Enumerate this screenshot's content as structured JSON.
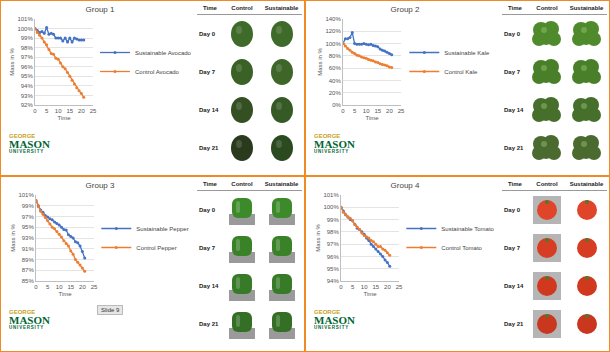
{
  "chart_data": [
    {
      "type": "line",
      "title": "Group 1",
      "x_label": "Time",
      "y_label": "Mass in %",
      "x": [
        0,
        1,
        2,
        3,
        4,
        5,
        6,
        7,
        8,
        9,
        10,
        11,
        12,
        13,
        14,
        15,
        16,
        17,
        18,
        19,
        20,
        21
      ],
      "xlim": [
        0,
        25
      ],
      "xticks": [
        0,
        5,
        10,
        15,
        20,
        25
      ],
      "ylim": [
        92,
        101
      ],
      "yticks": [
        {
          "value": 92,
          "label": "92%"
        },
        {
          "value": 93,
          "label": "93%"
        },
        {
          "value": 94,
          "label": "94%"
        },
        {
          "value": 95,
          "label": "95%"
        },
        {
          "value": 96,
          "label": "96%"
        },
        {
          "value": 97,
          "label": "97%"
        },
        {
          "value": 98,
          "label": "98%"
        },
        {
          "value": 99,
          "label": "99%"
        },
        {
          "value": 100,
          "label": "100%"
        },
        {
          "value": 101,
          "label": "101%"
        }
      ],
      "grid": true,
      "legend": "right",
      "series": [
        {
          "name": "Sustainable Avocado",
          "color": "#4472c4",
          "marker": "circle",
          "values": [
            100,
            99.8,
            99.6,
            99.7,
            99.5,
            100.1,
            99.4,
            99.5,
            99.4,
            99.0,
            99.0,
            99.0,
            98.7,
            99.0,
            98.6,
            99.0,
            98.6,
            99.0,
            98.9,
            98.8,
            98.8,
            98.8
          ]
        },
        {
          "name": "Control Avocado",
          "color": "#ed7d31",
          "marker": "circle",
          "values": [
            100,
            99.6,
            99.3,
            99.0,
            98.6,
            98.3,
            97.8,
            97.4,
            97.3,
            96.9,
            96.8,
            96.4,
            96.0,
            95.8,
            95.4,
            95.0,
            94.6,
            94.2,
            93.8,
            93.5,
            93.2,
            92.8
          ]
        }
      ]
    },
    {
      "type": "line",
      "title": "Group 2",
      "x_label": "Time",
      "y_label": "Mass in %",
      "x": [
        0,
        1,
        2,
        3,
        4,
        5,
        6,
        7,
        8,
        9,
        10,
        11,
        12,
        13,
        14,
        15,
        16,
        17,
        18,
        19,
        20,
        21
      ],
      "xlim": [
        0,
        25
      ],
      "xticks": [
        0,
        5,
        10,
        15,
        20,
        25
      ],
      "ylim": [
        0,
        140
      ],
      "yticks": [
        {
          "value": 0,
          "label": "0%"
        },
        {
          "value": 20,
          "label": "20%"
        },
        {
          "value": 40,
          "label": "40%"
        },
        {
          "value": 60,
          "label": "60%"
        },
        {
          "value": 80,
          "label": "80%"
        },
        {
          "value": 100,
          "label": "100%"
        },
        {
          "value": 120,
          "label": "120%"
        },
        {
          "value": 140,
          "label": "140%"
        }
      ],
      "grid": true,
      "legend": "right",
      "series": [
        {
          "name": "Sustainable Kale",
          "color": "#4472c4",
          "marker": "circle",
          "values": [
            100,
            108,
            108,
            110,
            118,
            100,
            99,
            99,
            99,
            100,
            99,
            98,
            99,
            97,
            96,
            95,
            91,
            89,
            88,
            86,
            84,
            82
          ]
        },
        {
          "name": "Control Kale",
          "color": "#ed7d31",
          "marker": "circle",
          "values": [
            100,
            96,
            92,
            89,
            86,
            84,
            81,
            80,
            78,
            77,
            76,
            74,
            73,
            72,
            70,
            69,
            67,
            66,
            65,
            64,
            62,
            61
          ]
        }
      ]
    },
    {
      "type": "line",
      "title": "Group 3",
      "x_label": "Time",
      "y_label": "Mass in %",
      "x": [
        0,
        1,
        2,
        3,
        4,
        5,
        6,
        7,
        8,
        9,
        10,
        11,
        12,
        13,
        14,
        15,
        16,
        17,
        18,
        19,
        20,
        21
      ],
      "xlim": [
        0,
        25
      ],
      "xticks": [
        0,
        5,
        10,
        15,
        20,
        25
      ],
      "ylim": [
        85,
        101
      ],
      "yticks": [
        {
          "value": 85,
          "label": "85%"
        },
        {
          "value": 87,
          "label": "87%"
        },
        {
          "value": 89,
          "label": "89%"
        },
        {
          "value": 91,
          "label": "91%"
        },
        {
          "value": 93,
          "label": "93%"
        },
        {
          "value": 95,
          "label": "95%"
        },
        {
          "value": 97,
          "label": "97%"
        },
        {
          "value": 99,
          "label": "99%"
        },
        {
          "value": 101,
          "label": "101%"
        }
      ],
      "grid": true,
      "legend": "right",
      "series": [
        {
          "name": "Sustainable Pepper",
          "color": "#4472c4",
          "marker": "circle",
          "values": [
            100,
            99.0,
            98.2,
            97.8,
            97.2,
            96.9,
            96.6,
            96.4,
            96.0,
            95.7,
            95.4,
            95.0,
            94.6,
            94.5,
            93.6,
            93.3,
            93.0,
            92.3,
            92.1,
            91.5,
            90.5,
            89.3
          ]
        },
        {
          "name": "Control Pepper",
          "color": "#ed7d31",
          "marker": "circle",
          "values": [
            100,
            98.8,
            98.0,
            97.4,
            96.8,
            96.2,
            95.6,
            95.0,
            94.7,
            94.2,
            93.7,
            93.2,
            92.5,
            92.0,
            91.5,
            90.6,
            90.0,
            89.0,
            88.5,
            88.0,
            87.4,
            86.8
          ]
        }
      ]
    },
    {
      "type": "line",
      "title": "Group 4",
      "x_label": "Time",
      "y_label": "Mass in %",
      "x": [
        0,
        1,
        2,
        3,
        4,
        5,
        6,
        7,
        8,
        9,
        10,
        11,
        12,
        13,
        14,
        15,
        16,
        17,
        18,
        19,
        20,
        21
      ],
      "xlim": [
        0,
        25
      ],
      "xticks": [
        0,
        5,
        10,
        15,
        20,
        25
      ],
      "ylim": [
        94,
        101
      ],
      "yticks": [
        {
          "value": 94,
          "label": "94%"
        },
        {
          "value": 95,
          "label": "95%"
        },
        {
          "value": 96,
          "label": "96%"
        },
        {
          "value": 97,
          "label": "97%"
        },
        {
          "value": 98,
          "label": "98%"
        },
        {
          "value": 99,
          "label": "99%"
        },
        {
          "value": 100,
          "label": "100%"
        },
        {
          "value": 101,
          "label": "101%"
        }
      ],
      "grid": true,
      "legend": "right",
      "series": [
        {
          "name": "Sustainable Tomato",
          "color": "#4472c4",
          "marker": "circle",
          "values": [
            100,
            99.7,
            99.4,
            99.2,
            99.0,
            98.9,
            98.6,
            98.3,
            98.2,
            98.0,
            97.8,
            97.5,
            97.3,
            97.0,
            96.8,
            96.6,
            96.4,
            96.2,
            96.0,
            95.7,
            95.5,
            95.2
          ]
        },
        {
          "name": "Control Tomato",
          "color": "#ed7d31",
          "marker": "circle",
          "values": [
            100,
            99.6,
            99.4,
            99.2,
            99.1,
            98.9,
            98.6,
            98.4,
            98.2,
            97.9,
            97.7,
            97.6,
            97.5,
            97.3,
            97.2,
            97.0,
            96.8,
            96.8,
            96.6,
            96.5,
            96.3,
            96.1
          ]
        }
      ]
    }
  ],
  "panels": [
    {
      "table": {
        "columns": [
          "Time",
          "Control",
          "Sustainable"
        ],
        "rows": [
          "Day 0",
          "Day 7",
          "Day 14",
          "Day 21"
        ]
      },
      "logo": [
        "GEORGE",
        "MASON",
        "UNIVERSITY"
      ]
    },
    {
      "table": {
        "columns": [
          "Time",
          "Control",
          "Sustainable"
        ],
        "rows": [
          "Day 0",
          "Day 7",
          "Day 14",
          "Day 21"
        ]
      },
      "logo": [
        "GEORGE",
        "MASON",
        "UNIVERSITY"
      ]
    },
    {
      "table": {
        "columns": [
          "Time",
          "Control",
          "Sustainable"
        ],
        "rows": [
          "Day 0",
          "Day 7",
          "Day 14",
          "Day 21"
        ]
      },
      "logo": [
        "GEORGE",
        "MASON",
        "UNIVERSITY"
      ],
      "note": "Slide 9"
    },
    {
      "table": {
        "columns": [
          "Time",
          "Control",
          "Sustainable"
        ],
        "rows": [
          "Day 0",
          "Day 7",
          "Day 14",
          "Day 21"
        ]
      },
      "logo": [
        "GEORGE",
        "MASON",
        "UNIVERSITY"
      ]
    }
  ]
}
